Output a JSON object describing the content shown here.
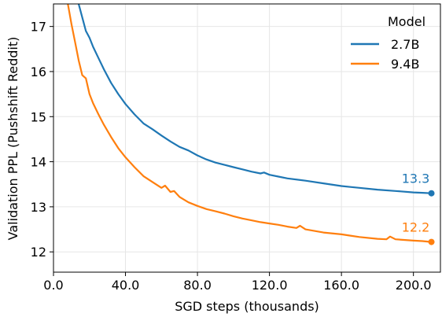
{
  "chart_data": {
    "type": "line",
    "title": "",
    "xlabel": "SGD steps (thousands)",
    "ylabel": "Validation PPL (Pushshift Reddit)",
    "xlim": [
      0,
      215
    ],
    "ylim": [
      11.55,
      17.5
    ],
    "xticks": [
      0,
      40,
      80,
      120,
      160,
      200
    ],
    "xtick_labels": [
      "0.0",
      "40.0",
      "80.0",
      "120.0",
      "160.0",
      "200.0"
    ],
    "yticks": [
      12,
      13,
      14,
      15,
      16,
      17
    ],
    "ytick_labels": [
      "12",
      "13",
      "14",
      "15",
      "16",
      "17"
    ],
    "grid": true,
    "legend": {
      "title": "Model",
      "position": "top-right"
    },
    "series": [
      {
        "name": "2.7B",
        "color": "#1f77b4",
        "x": [
          10,
          12,
          14,
          16,
          18,
          20,
          22,
          25,
          28,
          32,
          36,
          40,
          45,
          50,
          55,
          60,
          65,
          70,
          75,
          80,
          85,
          90,
          95,
          100,
          105,
          110,
          115,
          117,
          120,
          125,
          130,
          140,
          150,
          160,
          165,
          170,
          180,
          190,
          200,
          205,
          210
        ],
        "y": [
          18.2,
          17.9,
          17.5,
          17.2,
          16.9,
          16.75,
          16.55,
          16.3,
          16.05,
          15.75,
          15.5,
          15.28,
          15.05,
          14.85,
          14.72,
          14.58,
          14.45,
          14.33,
          14.25,
          14.14,
          14.05,
          13.98,
          13.93,
          13.88,
          13.83,
          13.78,
          13.74,
          13.76,
          13.71,
          13.67,
          13.63,
          13.58,
          13.52,
          13.46,
          13.44,
          13.42,
          13.38,
          13.35,
          13.32,
          13.31,
          13.3
        ],
        "end_label": "13.3"
      },
      {
        "name": "9.4B",
        "color": "#ff7f0e",
        "x": [
          8,
          10,
          12,
          14,
          16,
          18,
          20,
          22,
          25,
          28,
          32,
          36,
          40,
          45,
          50,
          55,
          60,
          62,
          65,
          67,
          70,
          75,
          80,
          85,
          90,
          95,
          100,
          105,
          110,
          115,
          120,
          125,
          130,
          135,
          137,
          140,
          150,
          160,
          165,
          170,
          180,
          185,
          187,
          190,
          200,
          205,
          210
        ],
        "y": [
          17.5,
          17.05,
          16.65,
          16.25,
          15.92,
          15.85,
          15.5,
          15.3,
          15.05,
          14.82,
          14.55,
          14.3,
          14.1,
          13.88,
          13.68,
          13.55,
          13.42,
          13.47,
          13.33,
          13.35,
          13.22,
          13.1,
          13.02,
          12.95,
          12.9,
          12.85,
          12.79,
          12.74,
          12.7,
          12.66,
          12.63,
          12.6,
          12.56,
          12.53,
          12.58,
          12.5,
          12.43,
          12.39,
          12.36,
          12.33,
          12.29,
          12.28,
          12.34,
          12.28,
          12.25,
          12.24,
          12.22
        ],
        "end_label": "12.2"
      }
    ]
  }
}
